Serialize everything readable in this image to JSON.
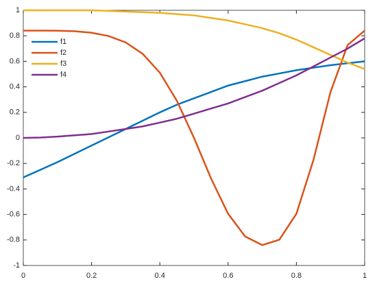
{
  "chart_data": {
    "type": "line",
    "x": [
      0,
      0.05,
      0.1,
      0.15,
      0.2,
      0.25,
      0.3,
      0.35,
      0.4,
      0.45,
      0.5,
      0.55,
      0.6,
      0.65,
      0.7,
      0.75,
      0.8,
      0.85,
      0.9,
      0.95,
      1
    ],
    "series": [
      {
        "name": "f1",
        "color": "#0072BD",
        "values": [
          -0.31,
          -0.25,
          -0.19,
          -0.125,
          -0.06,
          0.005,
          0.07,
          0.135,
          0.2,
          0.26,
          0.31,
          0.36,
          0.41,
          0.445,
          0.48,
          0.505,
          0.53,
          0.55,
          0.57,
          0.585,
          0.6
        ]
      },
      {
        "name": "f2",
        "color": "#D95319",
        "values": [
          0.841,
          0.841,
          0.84,
          0.836,
          0.824,
          0.798,
          0.748,
          0.658,
          0.511,
          0.29,
          0,
          -0.318,
          -0.595,
          -0.773,
          -0.84,
          -0.798,
          -0.595,
          -0.173,
          0.36,
          0.727,
          0.841
        ]
      },
      {
        "name": "f3",
        "color": "#EDB120",
        "values": [
          1,
          1,
          1,
          1,
          1,
          0.995,
          0.99,
          0.985,
          0.98,
          0.97,
          0.96,
          0.94,
          0.92,
          0.89,
          0.86,
          0.82,
          0.77,
          0.71,
          0.65,
          0.59,
          0.54
        ]
      },
      {
        "name": "f4",
        "color": "#7E2F8E",
        "values": [
          0,
          0.003,
          0.01,
          0.02,
          0.03,
          0.05,
          0.07,
          0.09,
          0.12,
          0.15,
          0.19,
          0.23,
          0.27,
          0.32,
          0.37,
          0.43,
          0.49,
          0.56,
          0.63,
          0.7,
          0.78
        ]
      }
    ],
    "xlim": [
      0,
      1
    ],
    "xticks": [
      0,
      0.2,
      0.4,
      0.6,
      0.8,
      1
    ],
    "ylim": [
      -1,
      1
    ],
    "yticks": [
      -1,
      -0.8,
      -0.6,
      -0.4,
      -0.2,
      0,
      0.2,
      0.4,
      0.6,
      0.8,
      1
    ],
    "grid": false,
    "legend": "upper-left"
  }
}
